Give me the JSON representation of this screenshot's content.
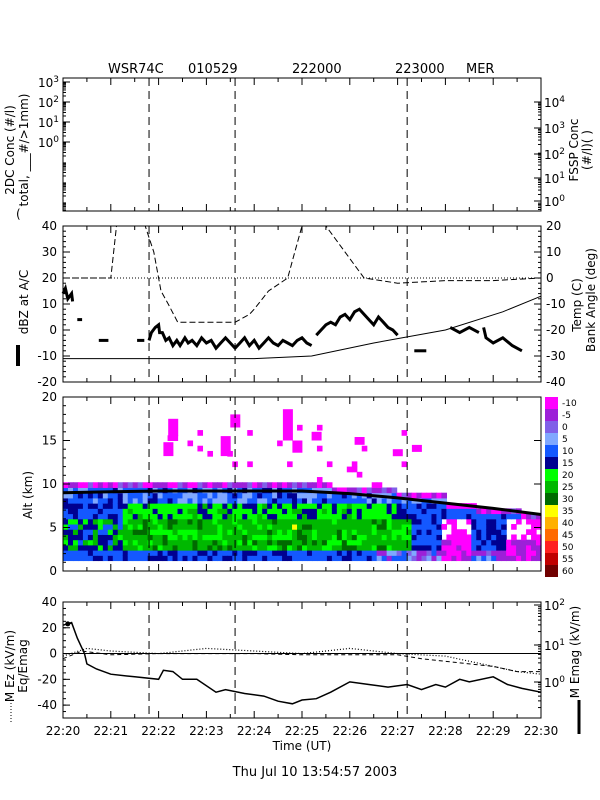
{
  "header": {
    "radar": "WSR74C",
    "date": "010529",
    "t1": "222000",
    "t2": "223000",
    "site": "MER"
  },
  "footer": {
    "timestamp": "Thu Jul 10 13:54:57 2003"
  },
  "colors": {
    "ink": "#000000"
  },
  "chart_data": [
    {
      "type": "line",
      "panel": "particle-concentration",
      "ylabel_lines": [
        "2DC Conc (#/l)",
        "total, ___#/>1mm)"
      ],
      "y2label_lines": [
        "FSSP Conc",
        "(#/l)(  )"
      ],
      "yticks_left": [
        "10",
        "10",
        "10",
        "10"
      ],
      "yticks_left_exp": [
        "3",
        "2",
        "1",
        "0"
      ],
      "yticks_right": [
        "10",
        "10",
        "10",
        "10",
        "10"
      ],
      "yticks_right_exp": [
        "4",
        "3",
        "2",
        "1",
        "0"
      ],
      "yscale": "log",
      "series": []
    },
    {
      "type": "line",
      "panel": "dbz-temp-bank",
      "ylabel": "dBZ at A/C",
      "y2label_lines": [
        "Temp (C)",
        "Bank Angle (deg)"
      ],
      "ylim": [
        -20,
        40
      ],
      "yticks": [
        -20,
        -10,
        0,
        10,
        20,
        30,
        40
      ],
      "y2lim": [
        -40,
        20
      ],
      "y2ticks": [
        -40,
        -30,
        -20,
        -10,
        0,
        10,
        20
      ],
      "dbz_segments": [
        [
          [
            0.0,
            14
          ],
          [
            0.05,
            16
          ],
          [
            0.1,
            12
          ],
          [
            0.18,
            14
          ],
          [
            0.2,
            11
          ]
        ],
        [
          [
            0.3,
            4
          ],
          [
            0.4,
            4
          ]
        ],
        [
          [
            0.75,
            -4
          ],
          [
            0.95,
            -4
          ]
        ],
        [
          [
            1.55,
            -4
          ],
          [
            1.7,
            -4
          ]
        ],
        [
          [
            1.8,
            -4
          ],
          [
            1.85,
            -1
          ],
          [
            1.93,
            1
          ],
          [
            2.0,
            2
          ],
          [
            2.02,
            -1
          ],
          [
            2.08,
            -1
          ],
          [
            2.15,
            -4
          ],
          [
            2.22,
            -3
          ],
          [
            2.3,
            -6
          ],
          [
            2.38,
            -4
          ],
          [
            2.45,
            -6
          ],
          [
            2.55,
            -3
          ],
          [
            2.62,
            -5
          ],
          [
            2.7,
            -4
          ],
          [
            2.8,
            -6
          ],
          [
            2.9,
            -3
          ],
          [
            3.0,
            -5
          ],
          [
            3.1,
            -4
          ],
          [
            3.2,
            -7
          ],
          [
            3.3,
            -5
          ],
          [
            3.4,
            -3
          ],
          [
            3.5,
            -5
          ],
          [
            3.6,
            -7
          ],
          [
            3.7,
            -5
          ],
          [
            3.8,
            -3
          ],
          [
            3.9,
            -6
          ],
          [
            4.0,
            -4
          ],
          [
            4.1,
            -7
          ],
          [
            4.2,
            -5
          ],
          [
            4.3,
            -3
          ],
          [
            4.4,
            -5
          ],
          [
            4.5,
            -6
          ],
          [
            4.6,
            -4
          ],
          [
            4.7,
            -5
          ],
          [
            4.8,
            -6
          ],
          [
            4.9,
            -4
          ],
          [
            5.0,
            -3
          ],
          [
            5.1,
            -5
          ],
          [
            5.2,
            -6
          ]
        ],
        [
          [
            5.3,
            -2
          ],
          [
            5.4,
            0
          ],
          [
            5.5,
            2
          ],
          [
            5.6,
            3
          ],
          [
            5.7,
            2
          ],
          [
            5.8,
            5
          ],
          [
            5.9,
            6
          ],
          [
            6.0,
            4
          ],
          [
            6.1,
            7
          ],
          [
            6.2,
            8
          ],
          [
            6.3,
            6
          ],
          [
            6.4,
            4
          ],
          [
            6.5,
            2
          ],
          [
            6.6,
            5
          ],
          [
            6.7,
            3
          ],
          [
            6.8,
            1
          ],
          [
            6.9,
            0
          ],
          [
            7.0,
            -2
          ]
        ],
        [
          [
            7.35,
            -8
          ],
          [
            7.6,
            -8
          ]
        ],
        [
          [
            8.1,
            1
          ],
          [
            8.3,
            -1
          ],
          [
            8.5,
            1
          ],
          [
            8.7,
            -1
          ]
        ],
        [
          [
            8.8,
            1
          ],
          [
            8.85,
            -3
          ],
          [
            9.0,
            -5
          ],
          [
            9.2,
            -3
          ],
          [
            9.4,
            -6
          ],
          [
            9.6,
            -8
          ]
        ]
      ],
      "temp": [
        [
          0.0,
          -31.0
        ],
        [
          1.0,
          -31.0
        ],
        [
          4.0,
          -31.0
        ],
        [
          5.2,
          -30.0
        ],
        [
          6.5,
          -25.0
        ],
        [
          8.0,
          -20.0
        ],
        [
          9.2,
          -13.0
        ],
        [
          10.0,
          -7.0
        ]
      ],
      "bank_angle": [
        [
          0.0,
          0.0
        ],
        [
          0.6,
          0.0
        ],
        [
          1.0,
          0.0
        ],
        [
          1.12,
          20
        ],
        [
          1.72,
          20
        ],
        [
          1.9,
          10
        ],
        [
          2.05,
          -5
        ],
        [
          2.2,
          -10
        ],
        [
          2.4,
          -17
        ],
        [
          3.0,
          -17
        ],
        [
          3.6,
          -17
        ],
        [
          3.9,
          -14
        ],
        [
          4.0,
          -12
        ],
        [
          4.3,
          -5
        ],
        [
          4.7,
          0
        ],
        [
          4.85,
          10
        ],
        [
          5.0,
          20
        ],
        [
          5.5,
          20
        ],
        [
          6.3,
          0
        ],
        [
          7.0,
          -2
        ],
        [
          8.0,
          -1
        ],
        [
          9.0,
          -1
        ],
        [
          10.0,
          0.0
        ]
      ]
    },
    {
      "type": "heatmap",
      "panel": "radar-reflectivity-cross-section",
      "ylabel": "Alt (km)",
      "ylim": [
        0,
        20
      ],
      "yticks": [
        0,
        5,
        10,
        15,
        20
      ],
      "colorbar_labels": [
        "-10",
        "-5",
        "0",
        "5",
        "10",
        "15",
        "20",
        "25",
        "30",
        "35",
        "40",
        "45",
        "50",
        "55",
        "60"
      ],
      "colorbar_colors": [
        "#ff00ff",
        "#9c20d8",
        "#8060e8",
        "#80a8ff",
        "#1458ff",
        "#000090",
        "#00ff00",
        "#00b800",
        "#006a00",
        "#ffff00",
        "#ffb000",
        "#ff6a00",
        "#ff2020",
        "#c00000",
        "#700000"
      ],
      "level_edges": [
        -10,
        -5,
        0,
        5,
        10,
        15,
        20,
        25,
        30,
        35,
        40,
        45,
        50,
        55,
        60
      ],
      "flight_altitude": [
        [
          0.0,
          9.0
        ],
        [
          1.0,
          9.1
        ],
        [
          2.0,
          9.2
        ],
        [
          3.0,
          9.2
        ],
        [
          4.0,
          9.2
        ],
        [
          5.0,
          9.2
        ],
        [
          6.0,
          8.9
        ],
        [
          7.0,
          8.4
        ],
        [
          8.0,
          7.8
        ],
        [
          9.0,
          7.2
        ],
        [
          10.0,
          6.5
        ]
      ]
    },
    {
      "type": "line",
      "panel": "electric-field",
      "ylabel_lines": [
        "M Ez (kV/m)",
        "Eq/Emag"
      ],
      "y2label": "M Emag (kV/m)",
      "ylim": [
        -50,
        40
      ],
      "yticks": [
        -40,
        -20,
        0,
        20,
        40
      ],
      "y2ticks": [
        "10",
        "10",
        "10"
      ],
      "y2ticks_exp": [
        "2",
        "1",
        "0"
      ],
      "ez_solid": [
        [
          0.0,
          22
        ],
        [
          0.18,
          24
        ],
        [
          0.3,
          12
        ],
        [
          0.45,
          0
        ],
        [
          0.5,
          -8
        ],
        [
          0.7,
          -12
        ],
        [
          1.0,
          -16
        ],
        [
          1.5,
          -18
        ],
        [
          2.0,
          -20
        ],
        [
          2.1,
          -13
        ],
        [
          2.3,
          -14
        ],
        [
          2.5,
          -20
        ],
        [
          2.8,
          -20
        ],
        [
          3.2,
          -30
        ],
        [
          3.4,
          -28
        ],
        [
          3.8,
          -31
        ],
        [
          4.2,
          -33
        ],
        [
          4.5,
          -37
        ],
        [
          4.8,
          -39
        ],
        [
          5.0,
          -36
        ],
        [
          5.3,
          -35
        ],
        [
          5.6,
          -30
        ],
        [
          6.0,
          -22
        ],
        [
          6.4,
          -24
        ],
        [
          6.8,
          -26
        ],
        [
          7.2,
          -24
        ],
        [
          7.5,
          -28
        ],
        [
          7.8,
          -24
        ],
        [
          8.0,
          -26
        ],
        [
          8.3,
          -20
        ],
        [
          8.5,
          -22
        ],
        [
          9.0,
          -18
        ],
        [
          9.3,
          -24
        ],
        [
          9.6,
          -27
        ],
        [
          10.0,
          -30
        ]
      ],
      "eq_dotted": [
        [
          0.0,
          -2
        ],
        [
          0.5,
          4
        ],
        [
          1.0,
          2
        ],
        [
          2.0,
          0
        ],
        [
          3.0,
          4
        ],
        [
          4.0,
          2
        ],
        [
          5.0,
          0
        ],
        [
          6.0,
          4
        ],
        [
          7.0,
          0
        ],
        [
          8.0,
          -2
        ],
        [
          9.0,
          -10
        ],
        [
          9.5,
          -14
        ],
        [
          10.0,
          -16
        ]
      ],
      "emag_dashed": [
        [
          0.0,
          -4
        ],
        [
          0.4,
          2
        ],
        [
          1.0,
          -1
        ],
        [
          2.0,
          0
        ],
        [
          3.0,
          0
        ],
        [
          4.0,
          0
        ],
        [
          5.0,
          -1
        ],
        [
          6.0,
          -1
        ],
        [
          7.0,
          -1
        ],
        [
          7.5,
          -4
        ],
        [
          8.0,
          -6
        ],
        [
          8.5,
          -8
        ],
        [
          9.0,
          -10
        ],
        [
          9.5,
          -14
        ],
        [
          10.0,
          -14
        ]
      ]
    },
    {
      "type": "axis",
      "panel": "time-axis",
      "xlabel": "Time (UT)",
      "xticks": [
        "22:20",
        "22:21",
        "22:22",
        "22:23",
        "22:24",
        "22:25",
        "22:26",
        "22:27",
        "22:28",
        "22:29",
        "22:30"
      ],
      "xlim_minutes": [
        0,
        10
      ],
      "vertical_markers_minutes": [
        1.8,
        3.6,
        7.2
      ]
    }
  ]
}
